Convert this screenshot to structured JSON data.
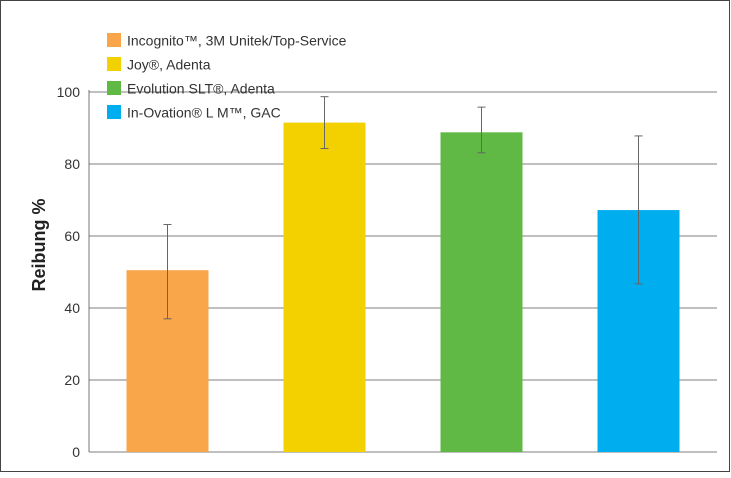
{
  "chart_data": {
    "type": "bar",
    "categories": [
      "Incognito™, 3M Unitek/Top-Service",
      "Joy®, Adenta",
      "Evolution SLT®, Adenta",
      "In-Ovation® L M™, GAC"
    ],
    "values": [
      50.5,
      91.5,
      88.8,
      67.2
    ],
    "error_low": [
      37.0,
      84.3,
      83.1,
      46.7
    ],
    "error_high": [
      63.2,
      98.7,
      95.8,
      87.8
    ],
    "colors": [
      "#f9a54a",
      "#f3d000",
      "#60b945",
      "#00adee"
    ],
    "legend": [
      {
        "label": "Incognito™, 3M Unitek/Top-Service",
        "color": "#f9a54a"
      },
      {
        "label": "Joy®, Adenta",
        "color": "#f3d000"
      },
      {
        "label": "Evolution SLT®, Adenta",
        "color": "#60b945"
      },
      {
        "label": "In-Ovation® L M™, GAC",
        "color": "#00adee"
      }
    ],
    "ylabel": "Reibung %",
    "xlabel": "",
    "title": "",
    "ylim": [
      0,
      100
    ],
    "yticks": [
      0,
      20,
      40,
      60,
      80,
      100
    ],
    "grid": true,
    "legend_position": "top-left"
  }
}
